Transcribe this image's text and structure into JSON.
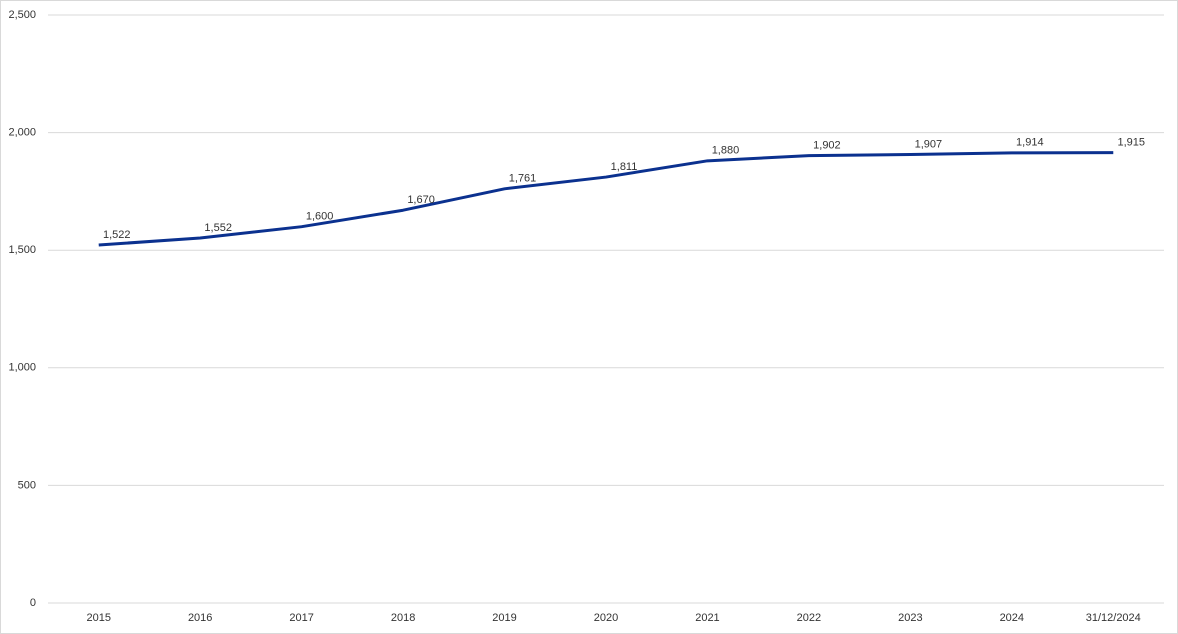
{
  "chart_data": {
    "type": "line",
    "categories": [
      "2015",
      "2016",
      "2017",
      "2018",
      "2019",
      "2020",
      "2021",
      "2022",
      "2023",
      "2024",
      "31/12/2024"
    ],
    "values": [
      1522,
      1552,
      1600,
      1670,
      1761,
      1811,
      1880,
      1902,
      1907,
      1914,
      1915
    ],
    "value_labels": [
      "1,522",
      "1,552",
      "1,600",
      "1,670",
      "1,761",
      "1,811",
      "1,880",
      "1,902",
      "1,907",
      "1,914",
      "1,915"
    ],
    "color": "#0b318f",
    "ylim": [
      0,
      2500
    ],
    "yticks": [
      0,
      500,
      {
        "value": 1000,
        "label": "1,000"
      },
      {
        "value": 1500,
        "label": "1,500"
      },
      {
        "value": 2000,
        "label": "2,000"
      },
      {
        "value": 2500,
        "label": "2,500"
      }
    ],
    "grid": true
  }
}
